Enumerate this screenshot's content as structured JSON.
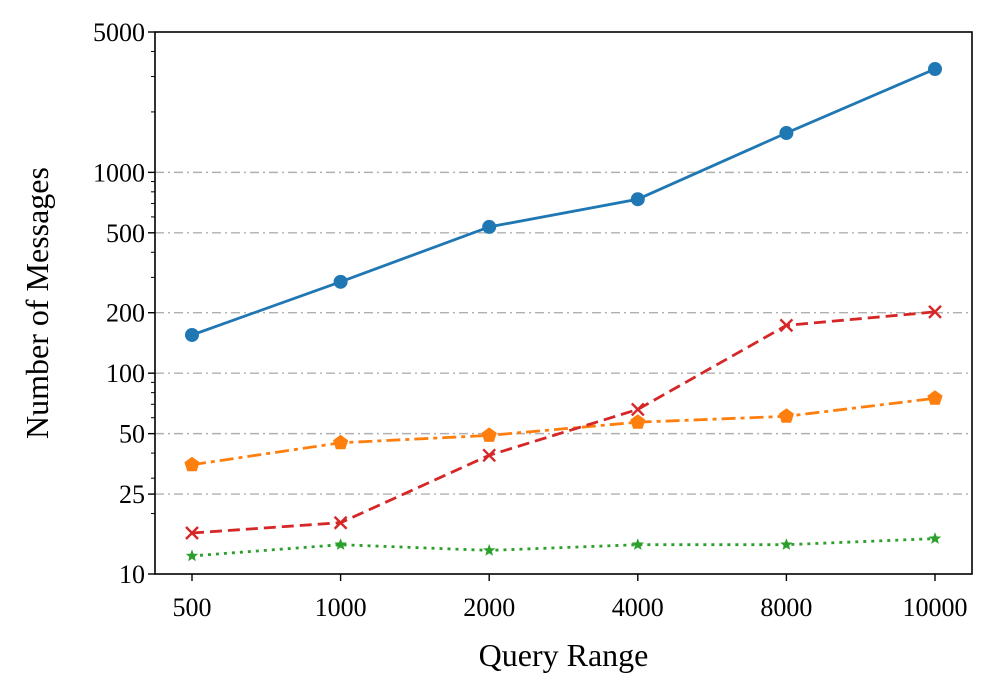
{
  "chart_data": {
    "type": "line",
    "xlabel": "Query Range",
    "ylabel": "Number of Messages",
    "y_scale": "log",
    "ylim": [
      10,
      5000
    ],
    "x": [
      "500",
      "1000",
      "2000",
      "4000",
      "8000",
      "10000"
    ],
    "y_ticks": [
      10,
      25,
      50,
      100,
      200,
      500,
      1000,
      5000
    ],
    "y_tick_labels": [
      "10",
      "25",
      "50",
      "100",
      "200",
      "500",
      "1000",
      "5000"
    ],
    "y_minor_ticks": [
      20,
      30,
      40,
      60,
      70,
      80,
      90,
      300,
      400,
      600,
      700,
      800,
      900,
      2000,
      3000,
      4000
    ],
    "gridlines_at": [
      25,
      50,
      100,
      200,
      500,
      1000
    ],
    "grid": true,
    "legend": "none",
    "series": [
      {
        "color": "#1f77b4",
        "line_style": "solid",
        "marker": "circle",
        "values": [
          155,
          285,
          535,
          735,
          1570,
          3270
        ]
      },
      {
        "color": "#ff7f0e",
        "line_style": "dashdot",
        "marker": "pentagon",
        "values": [
          35,
          45,
          49,
          57,
          61,
          75
        ]
      },
      {
        "color": "#d62728",
        "line_style": "dashed",
        "marker": "x",
        "values": [
          16,
          18,
          39,
          66,
          173,
          202
        ]
      },
      {
        "color": "#2ca02c",
        "line_style": "dotted",
        "marker": "star",
        "values": [
          12.3,
          14,
          13.1,
          14,
          14,
          15
        ]
      }
    ]
  }
}
